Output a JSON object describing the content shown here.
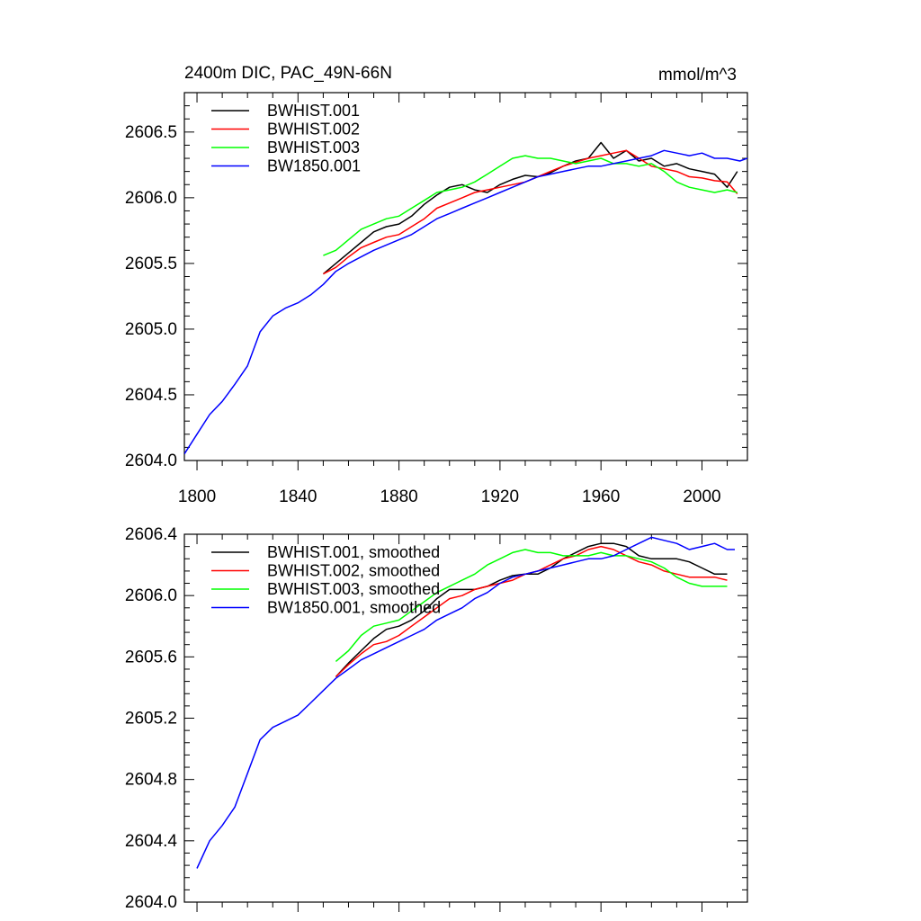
{
  "chart_data": [
    {
      "type": "line",
      "title_left": "2400m DIC, PAC_49N-66N",
      "title_right": "mmol/m^3",
      "xlabel": "",
      "ylabel": "",
      "xlim": [
        1795,
        2018
      ],
      "ylim": [
        2604.0,
        2606.8
      ],
      "xticks": [
        1800,
        1840,
        1880,
        1920,
        1960,
        2000
      ],
      "xtick_labels": [
        "1800",
        "1840",
        "1880",
        "1920",
        "1960",
        "2000"
      ],
      "yticks": [
        2604.0,
        2604.5,
        2605.0,
        2605.5,
        2606.0,
        2606.5
      ],
      "ytick_labels": [
        "2604.0",
        "2604.5",
        "2605.0",
        "2605.5",
        "2606.0",
        "2606.5"
      ],
      "legend_position": "top-left",
      "series": [
        {
          "name": "BWHIST.001",
          "color": "#000000",
          "x": [
            1850,
            1855,
            1860,
            1865,
            1870,
            1875,
            1880,
            1885,
            1890,
            1895,
            1900,
            1905,
            1910,
            1915,
            1920,
            1925,
            1930,
            1935,
            1940,
            1945,
            1950,
            1955,
            1960,
            1965,
            1970,
            1975,
            1980,
            1985,
            1990,
            1995,
            2000,
            2005,
            2010,
            2014
          ],
          "values": [
            2605.42,
            2605.5,
            2605.58,
            2605.66,
            2605.74,
            2605.78,
            2605.8,
            2605.86,
            2605.95,
            2606.02,
            2606.08,
            2606.1,
            2606.06,
            2606.04,
            2606.1,
            2606.14,
            2606.17,
            2606.16,
            2606.19,
            2606.24,
            2606.28,
            2606.3,
            2606.42,
            2606.3,
            2606.36,
            2606.28,
            2606.3,
            2606.24,
            2606.26,
            2606.22,
            2606.2,
            2606.18,
            2606.08,
            2606.2
          ]
        },
        {
          "name": "BWHIST.002",
          "color": "#ff0000",
          "x": [
            1850,
            1855,
            1860,
            1865,
            1870,
            1875,
            1880,
            1885,
            1890,
            1895,
            1900,
            1905,
            1910,
            1915,
            1920,
            1925,
            1930,
            1935,
            1940,
            1945,
            1950,
            1955,
            1960,
            1965,
            1970,
            1975,
            1980,
            1985,
            1990,
            1995,
            2000,
            2005,
            2010,
            2014
          ],
          "values": [
            2605.42,
            2605.47,
            2605.55,
            2605.62,
            2605.66,
            2605.7,
            2605.72,
            2605.78,
            2605.84,
            2605.92,
            2605.96,
            2606.0,
            2606.04,
            2606.06,
            2606.08,
            2606.1,
            2606.12,
            2606.16,
            2606.2,
            2606.24,
            2606.27,
            2606.3,
            2606.32,
            2606.34,
            2606.36,
            2606.3,
            2606.24,
            2606.22,
            2606.2,
            2606.16,
            2606.15,
            2606.13,
            2606.12,
            2606.03
          ]
        },
        {
          "name": "BWHIST.003",
          "color": "#00ff00",
          "x": [
            1850,
            1855,
            1860,
            1865,
            1870,
            1875,
            1880,
            1885,
            1890,
            1895,
            1900,
            1905,
            1910,
            1915,
            1920,
            1925,
            1930,
            1935,
            1940,
            1945,
            1950,
            1955,
            1960,
            1965,
            1970,
            1975,
            1980,
            1985,
            1990,
            1995,
            2000,
            2005,
            2010,
            2014
          ],
          "values": [
            2605.56,
            2605.6,
            2605.68,
            2605.76,
            2605.8,
            2605.84,
            2605.86,
            2605.92,
            2605.98,
            2606.04,
            2606.06,
            2606.08,
            2606.12,
            2606.18,
            2606.24,
            2606.3,
            2606.32,
            2606.3,
            2606.3,
            2606.28,
            2606.26,
            2606.28,
            2606.3,
            2606.26,
            2606.26,
            2606.24,
            2606.26,
            2606.2,
            2606.12,
            2606.08,
            2606.06,
            2606.04,
            2606.06,
            2606.04
          ]
        },
        {
          "name": "BW1850.001",
          "color": "#0000ff",
          "x": [
            1795,
            1800,
            1805,
            1810,
            1815,
            1820,
            1825,
            1830,
            1835,
            1840,
            1845,
            1850,
            1855,
            1860,
            1865,
            1870,
            1875,
            1880,
            1885,
            1890,
            1895,
            1900,
            1905,
            1910,
            1915,
            1920,
            1925,
            1930,
            1935,
            1940,
            1945,
            1950,
            1955,
            1960,
            1965,
            1970,
            1975,
            1980,
            1985,
            1990,
            1995,
            2000,
            2005,
            2010,
            2015,
            2018
          ],
          "values": [
            2604.05,
            2604.2,
            2604.35,
            2604.45,
            2604.58,
            2604.72,
            2604.98,
            2605.1,
            2605.16,
            2605.2,
            2605.26,
            2605.34,
            2605.44,
            2605.5,
            2605.55,
            2605.6,
            2605.64,
            2605.68,
            2605.72,
            2605.78,
            2605.84,
            2605.88,
            2605.92,
            2605.96,
            2606.0,
            2606.04,
            2606.08,
            2606.12,
            2606.16,
            2606.18,
            2606.2,
            2606.22,
            2606.24,
            2606.24,
            2606.26,
            2606.28,
            2606.3,
            2606.32,
            2606.36,
            2606.34,
            2606.32,
            2606.34,
            2606.3,
            2606.3,
            2606.28,
            2606.3
          ]
        }
      ]
    },
    {
      "type": "line",
      "title_left": "",
      "title_right": "",
      "xlabel": "",
      "ylabel": "",
      "xlim": [
        1795,
        2018
      ],
      "ylim": [
        2604.0,
        2606.4
      ],
      "xticks": [
        1800,
        1840,
        1880,
        1920,
        1960,
        2000
      ],
      "xtick_labels": [],
      "yticks": [
        2604.0,
        2604.4,
        2604.8,
        2605.2,
        2605.6,
        2606.0,
        2606.4
      ],
      "ytick_labels": [
        "2604.0",
        "2604.4",
        "2604.8",
        "2605.2",
        "2605.6",
        "2606.0",
        "2606.4"
      ],
      "legend_position": "top-left",
      "series": [
        {
          "name": "BWHIST.001, smoothed",
          "color": "#000000",
          "x": [
            1855,
            1860,
            1865,
            1870,
            1875,
            1880,
            1885,
            1890,
            1895,
            1900,
            1905,
            1910,
            1915,
            1920,
            1925,
            1930,
            1935,
            1940,
            1945,
            1950,
            1955,
            1960,
            1965,
            1970,
            1975,
            1980,
            1985,
            1990,
            1995,
            2000,
            2005,
            2010
          ],
          "values": [
            2605.47,
            2605.56,
            2605.64,
            2605.72,
            2605.78,
            2605.8,
            2605.84,
            2605.9,
            2605.98,
            2606.04,
            2606.04,
            2606.04,
            2606.06,
            2606.1,
            2606.13,
            2606.14,
            2606.14,
            2606.18,
            2606.24,
            2606.28,
            2606.32,
            2606.34,
            2606.34,
            2606.32,
            2606.26,
            2606.24,
            2606.24,
            2606.24,
            2606.22,
            2606.18,
            2606.14,
            2606.14
          ]
        },
        {
          "name": "BWHIST.002, smoothed",
          "color": "#ff0000",
          "x": [
            1855,
            1860,
            1865,
            1870,
            1875,
            1880,
            1885,
            1890,
            1895,
            1900,
            1905,
            1910,
            1915,
            1920,
            1925,
            1930,
            1935,
            1940,
            1945,
            1950,
            1955,
            1960,
            1965,
            1970,
            1975,
            1980,
            1985,
            1990,
            1995,
            2000,
            2005,
            2010
          ],
          "values": [
            2605.47,
            2605.55,
            2605.62,
            2605.68,
            2605.7,
            2605.74,
            2605.8,
            2605.86,
            2605.92,
            2605.98,
            2606.0,
            2606.04,
            2606.06,
            2606.08,
            2606.1,
            2606.14,
            2606.16,
            2606.2,
            2606.24,
            2606.26,
            2606.3,
            2606.32,
            2606.3,
            2606.26,
            2606.22,
            2606.2,
            2606.16,
            2606.14,
            2606.12,
            2606.12,
            2606.12,
            2606.1
          ]
        },
        {
          "name": "BWHIST.003, smoothed",
          "color": "#00ff00",
          "x": [
            1855,
            1860,
            1865,
            1870,
            1875,
            1880,
            1885,
            1890,
            1895,
            1900,
            1905,
            1910,
            1915,
            1920,
            1925,
            1930,
            1935,
            1940,
            1945,
            1950,
            1955,
            1960,
            1965,
            1970,
            1975,
            1980,
            1985,
            1990,
            1995,
            2000,
            2005,
            2010
          ],
          "values": [
            2605.57,
            2605.64,
            2605.74,
            2605.8,
            2605.82,
            2605.84,
            2605.9,
            2605.96,
            2606.02,
            2606.06,
            2606.1,
            2606.14,
            2606.2,
            2606.24,
            2606.28,
            2606.3,
            2606.28,
            2606.28,
            2606.26,
            2606.26,
            2606.26,
            2606.28,
            2606.26,
            2606.26,
            2606.24,
            2606.22,
            2606.18,
            2606.12,
            2606.08,
            2606.06,
            2606.06,
            2606.06
          ]
        },
        {
          "name": "BW1850.001, smoothed",
          "color": "#0000ff",
          "x": [
            1800,
            1805,
            1810,
            1815,
            1820,
            1825,
            1830,
            1835,
            1840,
            1845,
            1850,
            1855,
            1860,
            1865,
            1870,
            1875,
            1880,
            1885,
            1890,
            1895,
            1900,
            1905,
            1910,
            1915,
            1920,
            1925,
            1930,
            1935,
            1940,
            1945,
            1950,
            1955,
            1960,
            1965,
            1970,
            1975,
            1980,
            1985,
            1990,
            1995,
            2000,
            2005,
            2010,
            2013
          ],
          "values": [
            2604.22,
            2604.4,
            2604.5,
            2604.62,
            2604.84,
            2605.06,
            2605.14,
            2605.18,
            2605.22,
            2605.3,
            2605.38,
            2605.46,
            2605.52,
            2605.58,
            2605.62,
            2605.66,
            2605.7,
            2605.74,
            2605.78,
            2605.84,
            2605.88,
            2605.92,
            2605.98,
            2606.02,
            2606.08,
            2606.12,
            2606.14,
            2606.16,
            2606.18,
            2606.2,
            2606.22,
            2606.24,
            2606.24,
            2606.26,
            2606.3,
            2606.34,
            2606.38,
            2606.36,
            2606.34,
            2606.3,
            2606.32,
            2606.34,
            2606.3,
            2606.3
          ]
        }
      ]
    }
  ]
}
